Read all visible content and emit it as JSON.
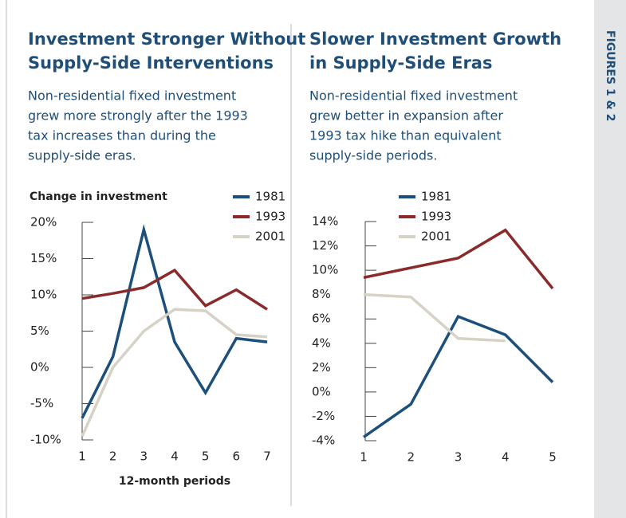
{
  "sidebar_label": "FIGURES 1 & 2",
  "chart_data": [
    {
      "type": "line",
      "title": [
        "Investment Stronger Without",
        "Supply-Side Interventions"
      ],
      "subtitle": [
        "Non-residential fixed investment",
        "grew more strongly after the 1993",
        "tax increases than during the",
        "supply-side eras."
      ],
      "ylabel": "Change in investment",
      "xlabel": "12-month periods",
      "x": [
        1,
        2,
        3,
        4,
        5,
        6,
        7
      ],
      "xlim": [
        1,
        7
      ],
      "xticks": [
        1,
        2,
        3,
        4,
        5,
        6,
        7
      ],
      "ylim": [
        -10,
        20
      ],
      "yticks": [
        {
          "value": -10,
          "label": "-10%"
        },
        {
          "value": -5,
          "label": "-5%"
        },
        {
          "value": 0,
          "label": "0%"
        },
        {
          "value": 5,
          "label": "5%"
        },
        {
          "value": 10,
          "label": "10%"
        },
        {
          "value": 15,
          "label": "15%"
        },
        {
          "value": 20,
          "label": "20%"
        }
      ],
      "series": [
        {
          "name": "1981",
          "color": "#1c4f7c",
          "values": [
            -7,
            1.5,
            19,
            3.5,
            -3.5,
            4,
            3.5
          ]
        },
        {
          "name": "1993",
          "color": "#8b2a2a",
          "values": [
            9.5,
            10.2,
            11,
            13.4,
            8.5,
            10.7,
            8
          ]
        },
        {
          "name": "2001",
          "color": "#d6d2c6",
          "values": [
            -9.5,
            0,
            5,
            8,
            7.8,
            4.5,
            4.2
          ]
        }
      ]
    },
    {
      "type": "line",
      "title": [
        "Slower Investment Growth",
        "in Supply-Side Eras"
      ],
      "subtitle": [
        "Non-residential fixed investment",
        "grew better in expansion after",
        "1993 tax hike than equivalent",
        "supply-side periods."
      ],
      "x": [
        1,
        2,
        3,
        4,
        5
      ],
      "xlim": [
        1,
        5
      ],
      "xticks": [
        1,
        2,
        3,
        4,
        5
      ],
      "ylim": [
        -4,
        14
      ],
      "yticks": [
        {
          "value": -4,
          "label": "-4%"
        },
        {
          "value": -2,
          "label": "-2%"
        },
        {
          "value": 0,
          "label": "0%"
        },
        {
          "value": 2,
          "label": "2%"
        },
        {
          "value": 4,
          "label": "4%"
        },
        {
          "value": 6,
          "label": "6%"
        },
        {
          "value": 8,
          "label": "8%"
        },
        {
          "value": 10,
          "label": "10%"
        },
        {
          "value": 12,
          "label": "12%"
        },
        {
          "value": 14,
          "label": "14%"
        }
      ],
      "series": [
        {
          "name": "1981",
          "color": "#1c4f7c",
          "values": [
            -3.7,
            -1,
            6.2,
            4.7,
            0.8
          ]
        },
        {
          "name": "1993",
          "color": "#8b2a2a",
          "values": [
            9.4,
            10.2,
            11,
            13.3,
            8.5
          ]
        },
        {
          "name": "2001",
          "color": "#d6d2c6",
          "values": [
            8,
            7.8,
            4.4,
            4.2,
            null
          ]
        }
      ]
    }
  ]
}
